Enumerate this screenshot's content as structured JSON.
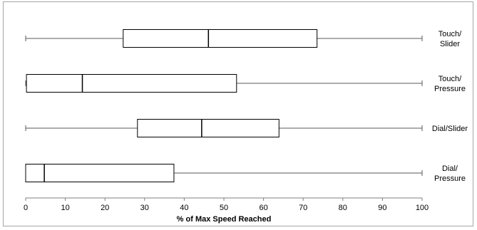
{
  "chart_data": {
    "type": "boxplot",
    "orientation": "horizontal",
    "title": "",
    "xlabel": "% of Max Speed Reached",
    "ylabel": "",
    "xlim": [
      0,
      100
    ],
    "xticks": [
      "0",
      "10",
      "20",
      "30",
      "40",
      "50",
      "60",
      "70",
      "80",
      "90",
      "100"
    ],
    "grid": false,
    "legend": "none",
    "series": [
      {
        "label_lines": [
          "Touch/",
          "Slider"
        ],
        "min": 0,
        "q1": 24.6,
        "median": 46.1,
        "q3": 73.5,
        "max": 100
      },
      {
        "label_lines": [
          "Touch/",
          "Pressure"
        ],
        "min": 0,
        "q1": 0.2,
        "median": 14.3,
        "q3": 53.2,
        "max": 100
      },
      {
        "label_lines": [
          "Dial/Slider"
        ],
        "min": 0,
        "q1": 28.2,
        "median": 44.4,
        "q3": 63.9,
        "max": 100
      },
      {
        "label_lines": [
          "Dial/",
          "Pressure"
        ],
        "min": 0,
        "q1": 0,
        "median": 4.7,
        "q3": 37.4,
        "max": 100
      }
    ],
    "colors": {
      "box_stroke": "#000000",
      "box_fill": "#ffffff",
      "whisker": "#595959",
      "axis": "#7f7f7f"
    }
  }
}
